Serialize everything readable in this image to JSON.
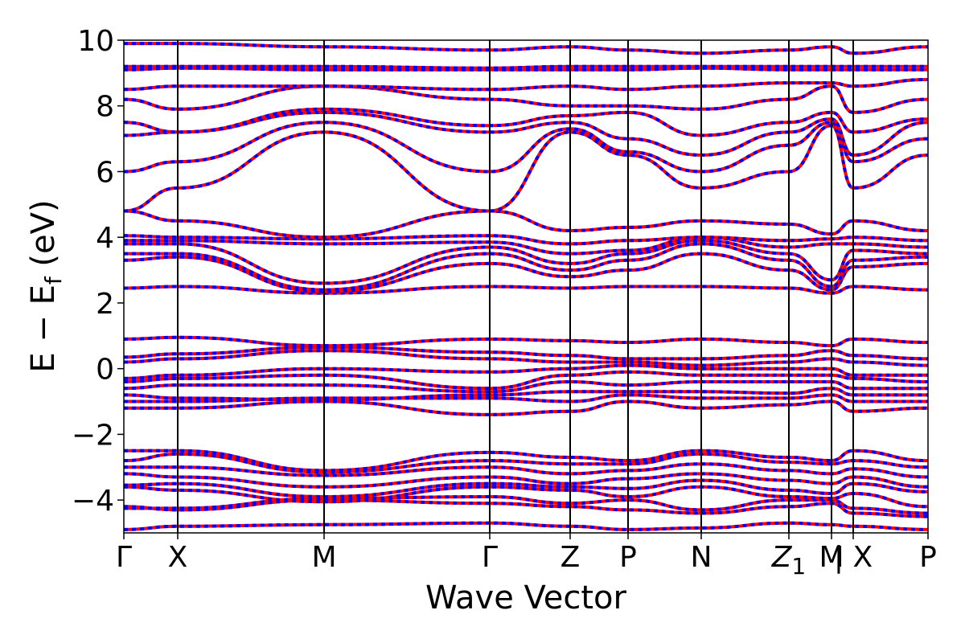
{
  "chart_data": {
    "type": "line",
    "title": "",
    "xlabel": "Wave Vector",
    "ylabel_parts": {
      "main": "E − E",
      "sub": "f",
      "tail": " (eV)"
    },
    "ylim": [
      -5,
      10
    ],
    "y_ticks": [
      {
        "value": -4,
        "label": "−4"
      },
      {
        "value": -2,
        "label": "−2"
      },
      {
        "value": 0,
        "label": "0"
      },
      {
        "value": 2,
        "label": "2"
      },
      {
        "value": 4,
        "label": "4"
      },
      {
        "value": 6,
        "label": "6"
      },
      {
        "value": 8,
        "label": "8"
      },
      {
        "value": 10,
        "label": "10"
      }
    ],
    "kpath": [
      {
        "k": 0.0,
        "label": "Γ"
      },
      {
        "k": 0.67,
        "label": "X"
      },
      {
        "k": 2.49,
        "label": "M"
      },
      {
        "k": 4.55,
        "label": "Γ"
      },
      {
        "k": 5.55,
        "label": "Z"
      },
      {
        "k": 6.27,
        "label": "P"
      },
      {
        "k": 7.18,
        "label": "N"
      },
      {
        "k": 8.27,
        "label": "Z",
        "sub": "1"
      },
      {
        "k": 8.8,
        "label": "M"
      },
      {
        "k": 9.07,
        "label": "| X"
      },
      {
        "k": 10.0,
        "label": "P"
      }
    ],
    "xlim": [
      0,
      10
    ],
    "line_colors": {
      "solid": "#ff0000",
      "dashed": "#0000ff"
    },
    "series": [
      {
        "values": [
          -4.9,
          -4.8,
          -4.75,
          -4.7,
          -4.8,
          -4.9,
          -4.85,
          -4.7,
          -4.75,
          -4.8,
          -4.9
        ]
      },
      {
        "values": [
          -4.2,
          -4.3,
          -4.0,
          -4.1,
          -4.2,
          -4.3,
          -4.4,
          -4.2,
          -4.1,
          -4.4,
          -4.5
        ]
      },
      {
        "values": [
          -4.25,
          -4.25,
          -3.95,
          -3.9,
          -4.1,
          -4.0,
          -4.3,
          -4.0,
          -4.0,
          -4.25,
          -4.4
        ]
      },
      {
        "values": [
          -3.6,
          -3.7,
          -4.05,
          -3.6,
          -3.7,
          -3.9,
          -3.6,
          -3.9,
          -3.95,
          -3.8,
          -4.2
        ]
      },
      {
        "values": [
          -3.55,
          -3.5,
          -3.9,
          -3.5,
          -3.6,
          -3.65,
          -3.4,
          -3.7,
          -3.8,
          -3.5,
          -3.75
        ]
      },
      {
        "values": [
          -3.2,
          -3.3,
          -3.6,
          -3.3,
          -3.5,
          -3.35,
          -3.2,
          -3.4,
          -3.5,
          -3.3,
          -3.6
        ]
      },
      {
        "values": [
          -3.0,
          -3.0,
          -3.25,
          -3.0,
          -3.2,
          -3.1,
          -2.9,
          -3.1,
          -3.2,
          -3.05,
          -3.3
        ]
      },
      {
        "values": [
          -2.8,
          -2.6,
          -3.15,
          -2.8,
          -2.9,
          -2.9,
          -2.6,
          -2.85,
          -2.9,
          -2.8,
          -3.0
        ]
      },
      {
        "values": [
          -2.5,
          -2.5,
          -3.1,
          -2.55,
          -2.7,
          -2.8,
          -2.5,
          -2.7,
          -2.8,
          -2.5,
          -2.8
        ]
      },
      {
        "values": [
          -1.2,
          -1.2,
          -1.0,
          -1.4,
          -1.3,
          -1.0,
          -1.2,
          -1.1,
          -1.0,
          -1.3,
          -1.2
        ]
      },
      {
        "values": [
          -1.0,
          -1.0,
          -0.9,
          -0.9,
          -1.0,
          -0.8,
          -0.9,
          -0.9,
          -0.8,
          -1.0,
          -1.0
        ]
      },
      {
        "values": [
          -0.8,
          -0.9,
          -0.95,
          -0.8,
          -0.7,
          -0.7,
          -0.7,
          -0.75,
          -0.6,
          -0.8,
          -0.8
        ]
      },
      {
        "values": [
          -0.6,
          -0.5,
          -0.5,
          -0.7,
          -0.4,
          -0.5,
          -0.4,
          -0.4,
          -0.4,
          -0.6,
          -0.6
        ]
      },
      {
        "values": [
          -0.4,
          -0.3,
          -0.2,
          -0.6,
          -0.2,
          -0.1,
          -0.2,
          -0.2,
          -0.2,
          -0.3,
          -0.4
        ]
      },
      {
        "values": [
          -0.3,
          -0.2,
          0.0,
          -0.1,
          0.0,
          0.1,
          0.0,
          0.0,
          0.0,
          -0.2,
          -0.2
        ]
      },
      {
        "values": [
          0.2,
          0.3,
          0.55,
          0.3,
          0.2,
          0.2,
          0.1,
          0.2,
          0.3,
          0.2,
          0.1
        ]
      },
      {
        "values": [
          0.35,
          0.45,
          0.65,
          0.5,
          0.4,
          0.3,
          0.3,
          0.4,
          0.55,
          0.4,
          0.3
        ]
      },
      {
        "values": [
          0.9,
          0.95,
          0.7,
          0.9,
          0.85,
          0.8,
          0.9,
          0.8,
          0.7,
          0.9,
          0.8
        ]
      },
      {
        "values": [
          2.45,
          2.5,
          2.3,
          2.5,
          2.45,
          2.5,
          2.5,
          2.45,
          2.3,
          2.5,
          2.4
        ]
      },
      {
        "values": [
          3.3,
          3.4,
          2.35,
          3.2,
          2.8,
          3.0,
          3.5,
          3.0,
          2.4,
          3.1,
          3.2
        ]
      },
      {
        "values": [
          3.5,
          3.5,
          2.4,
          3.5,
          3.0,
          3.3,
          3.8,
          3.3,
          2.5,
          3.3,
          3.4
        ]
      },
      {
        "values": [
          3.8,
          3.8,
          2.6,
          3.7,
          3.2,
          3.5,
          3.9,
          3.5,
          2.7,
          3.6,
          3.5
        ]
      },
      {
        "values": [
          3.9,
          3.9,
          3.8,
          3.85,
          3.5,
          3.6,
          4.0,
          3.7,
          3.8,
          3.8,
          3.7
        ]
      },
      {
        "values": [
          4.05,
          4.0,
          3.95,
          4.05,
          3.8,
          3.9,
          4.0,
          3.9,
          3.95,
          4.0,
          3.9
        ]
      },
      {
        "values": [
          4.8,
          4.5,
          4.0,
          4.8,
          4.2,
          4.3,
          4.5,
          4.4,
          4.1,
          4.5,
          4.2
        ]
      },
      {
        "values": [
          4.8,
          5.5,
          7.2,
          4.8,
          7.2,
          6.5,
          5.5,
          6.0,
          7.4,
          5.5,
          6.5
        ]
      },
      {
        "values": [
          6.0,
          6.3,
          7.5,
          6.0,
          7.3,
          6.6,
          6.0,
          6.8,
          7.5,
          6.3,
          7.0
        ]
      },
      {
        "values": [
          7.1,
          7.2,
          7.8,
          7.2,
          7.5,
          7.0,
          6.5,
          7.2,
          7.6,
          6.5,
          7.5
        ]
      },
      {
        "values": [
          7.5,
          7.2,
          7.9,
          7.4,
          7.7,
          7.8,
          7.1,
          7.5,
          7.8,
          7.2,
          7.6
        ]
      },
      {
        "values": [
          8.2,
          7.9,
          8.6,
          8.2,
          8.0,
          8.0,
          7.9,
          8.2,
          8.6,
          7.8,
          8.2
        ]
      },
      {
        "values": [
          8.5,
          8.6,
          8.6,
          8.5,
          8.6,
          8.5,
          8.6,
          8.7,
          8.7,
          8.6,
          8.8
        ]
      },
      {
        "values": [
          9.1,
          9.15,
          9.1,
          9.1,
          9.1,
          9.1,
          9.15,
          9.1,
          9.1,
          9.1,
          9.1
        ]
      },
      {
        "values": [
          9.2,
          9.2,
          9.2,
          9.15,
          9.2,
          9.2,
          9.2,
          9.2,
          9.2,
          9.2,
          9.2
        ]
      },
      {
        "values": [
          9.9,
          9.9,
          9.8,
          9.7,
          9.8,
          9.7,
          9.6,
          9.7,
          9.8,
          9.6,
          9.8
        ]
      }
    ]
  }
}
